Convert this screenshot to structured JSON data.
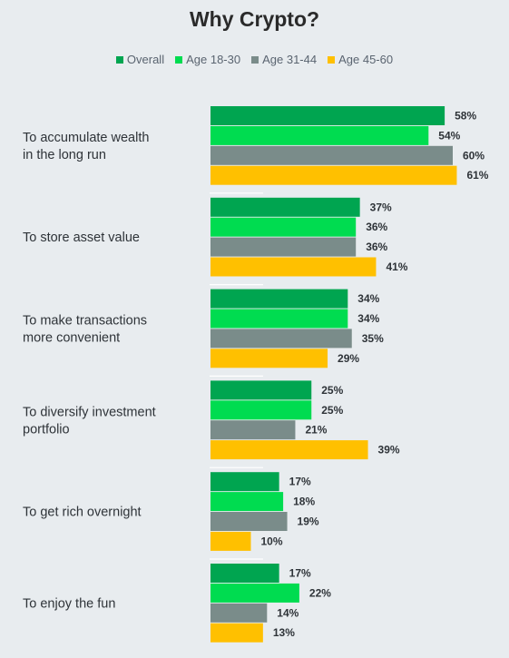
{
  "chart_data": {
    "type": "bar",
    "orientation": "horizontal",
    "title": "Why Crypto?",
    "categories": [
      [
        "To accumulate wealth",
        "in the long run"
      ],
      [
        "To store asset value"
      ],
      [
        "To make transactions",
        "more convenient"
      ],
      [
        "To diversify investment",
        "portfolio"
      ],
      [
        "To get rich overnight"
      ],
      [
        "To enjoy the fun"
      ]
    ],
    "series": [
      {
        "name": "Overall",
        "color": "#00a550",
        "values": [
          58,
          37,
          34,
          25,
          17,
          17
        ]
      },
      {
        "name": "Age 18-30",
        "color": "#00dc50",
        "values": [
          54,
          36,
          34,
          25,
          18,
          22
        ]
      },
      {
        "name": "Age 31-44",
        "color": "#7a8c8a",
        "values": [
          60,
          36,
          35,
          21,
          19,
          14
        ]
      },
      {
        "name": "Age 45-60",
        "color": "#ffc000",
        "values": [
          61,
          41,
          29,
          39,
          10,
          13
        ]
      }
    ],
    "value_suffix": "%",
    "legend_position": "top-center",
    "grid": false
  }
}
